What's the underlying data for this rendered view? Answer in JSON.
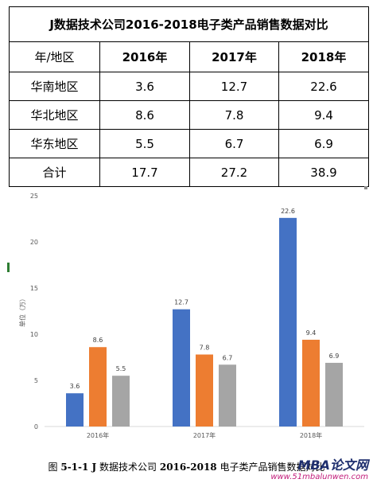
{
  "table": {
    "title": "J数据技术公司2016-2018电子类产品销售数据对比",
    "header": [
      "年/地区",
      "2016年",
      "2017年",
      "2018年"
    ],
    "rows": [
      [
        "华南地区",
        "3.6",
        "12.7",
        "22.6"
      ],
      [
        "华北地区",
        "8.6",
        "7.8",
        "9.4"
      ],
      [
        "华东地区",
        "5.5",
        "6.7",
        "6.9"
      ],
      [
        "合计",
        "17.7",
        "27.2",
        "38.9"
      ]
    ]
  },
  "chart_data": {
    "type": "bar",
    "categories": [
      "2016年",
      "2017年",
      "2018年"
    ],
    "series": [
      {
        "values": [
          3.6,
          12.7,
          22.6
        ],
        "color": "#4472c4"
      },
      {
        "values": [
          8.6,
          7.8,
          9.4
        ],
        "color": "#ed7d31"
      },
      {
        "values": [
          5.5,
          6.7,
          6.9
        ],
        "color": "#a5a5a5"
      }
    ],
    "ylabel": "单位（万）",
    "ylim": [
      0,
      25
    ],
    "yticks": [
      0,
      5,
      10,
      15,
      20,
      25
    ],
    "show_data_labels": true,
    "grid": false,
    "legend": "none"
  },
  "caption": {
    "prefix": "图 ",
    "number": "5-1-1 J",
    "middle": " 数据技术公司 ",
    "years": "2016-2018",
    "suffix": " 电子类产品销售数据对比"
  },
  "watermark": {
    "brand": "MBA论文网",
    "url": "www.51mbalunwen.com"
  }
}
